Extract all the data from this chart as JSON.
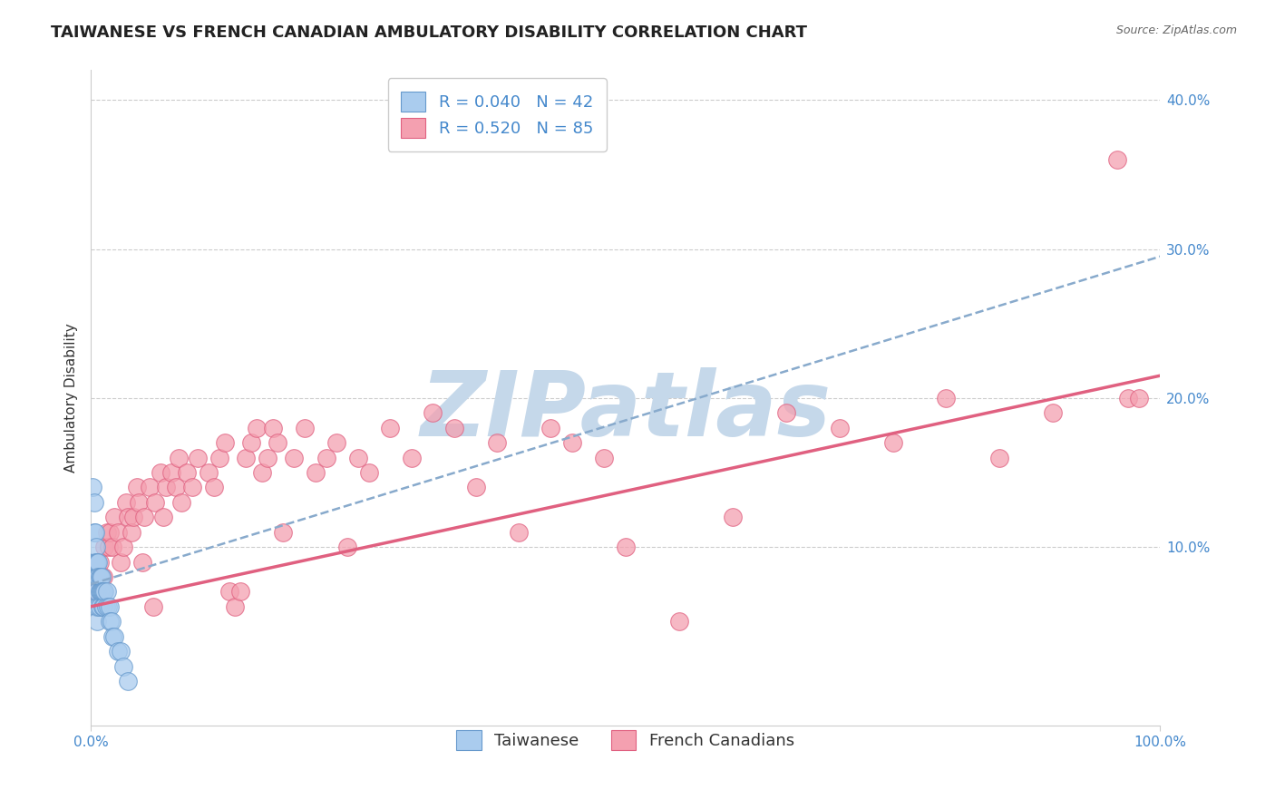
{
  "title": "TAIWANESE VS FRENCH CANADIAN AMBULATORY DISABILITY CORRELATION CHART",
  "source": "Source: ZipAtlas.com",
  "xlabel": "",
  "ylabel": "Ambulatory Disability",
  "watermark": "ZIPatlas",
  "xlim": [
    0.0,
    1.0
  ],
  "ylim": [
    -0.02,
    0.42
  ],
  "x_ticks": [
    0.0,
    1.0
  ],
  "x_tick_labels": [
    "0.0%",
    "100.0%"
  ],
  "y_ticks": [
    0.1,
    0.2,
    0.3,
    0.4
  ],
  "y_tick_labels": [
    "10.0%",
    "20.0%",
    "30.0%",
    "40.0%"
  ],
  "series": [
    {
      "name": "Taiwanese",
      "R": 0.04,
      "N": 42,
      "color": "#aaccee",
      "edge_color": "#6699cc",
      "line_color": "#88aadd",
      "line_style": "--",
      "x": [
        0.002,
        0.003,
        0.003,
        0.003,
        0.004,
        0.004,
        0.004,
        0.005,
        0.005,
        0.005,
        0.005,
        0.006,
        0.006,
        0.006,
        0.006,
        0.007,
        0.007,
        0.007,
        0.008,
        0.008,
        0.008,
        0.009,
        0.009,
        0.01,
        0.01,
        0.011,
        0.011,
        0.012,
        0.012,
        0.013,
        0.014,
        0.015,
        0.016,
        0.018,
        0.018,
        0.019,
        0.02,
        0.022,
        0.025,
        0.028,
        0.03,
        0.035
      ],
      "y": [
        0.14,
        0.13,
        0.11,
        0.09,
        0.11,
        0.09,
        0.07,
        0.1,
        0.09,
        0.08,
        0.06,
        0.09,
        0.08,
        0.07,
        0.05,
        0.09,
        0.08,
        0.06,
        0.08,
        0.07,
        0.06,
        0.08,
        0.07,
        0.08,
        0.07,
        0.07,
        0.06,
        0.07,
        0.06,
        0.07,
        0.06,
        0.07,
        0.06,
        0.06,
        0.05,
        0.05,
        0.04,
        0.04,
        0.03,
        0.03,
        0.02,
        0.01
      ]
    },
    {
      "name": "French Canadians",
      "R": 0.52,
      "N": 85,
      "color": "#f4a0b0",
      "edge_color": "#e06080",
      "line_color": "#e06080",
      "line_style": "-",
      "x": [
        0.002,
        0.003,
        0.004,
        0.005,
        0.006,
        0.007,
        0.008,
        0.009,
        0.01,
        0.012,
        0.013,
        0.015,
        0.017,
        0.018,
        0.02,
        0.022,
        0.025,
        0.028,
        0.03,
        0.033,
        0.035,
        0.038,
        0.04,
        0.043,
        0.045,
        0.048,
        0.05,
        0.055,
        0.058,
        0.06,
        0.065,
        0.068,
        0.07,
        0.075,
        0.08,
        0.082,
        0.085,
        0.09,
        0.095,
        0.1,
        0.11,
        0.115,
        0.12,
        0.125,
        0.13,
        0.135,
        0.14,
        0.145,
        0.15,
        0.155,
        0.16,
        0.165,
        0.17,
        0.175,
        0.18,
        0.19,
        0.2,
        0.21,
        0.22,
        0.23,
        0.24,
        0.25,
        0.26,
        0.28,
        0.3,
        0.32,
        0.34,
        0.36,
        0.38,
        0.4,
        0.43,
        0.45,
        0.48,
        0.5,
        0.55,
        0.6,
        0.65,
        0.7,
        0.75,
        0.8,
        0.85,
        0.9,
        0.96,
        0.97,
        0.98
      ],
      "y": [
        0.08,
        0.08,
        0.07,
        0.07,
        0.07,
        0.07,
        0.09,
        0.08,
        0.08,
        0.08,
        0.1,
        0.11,
        0.1,
        0.11,
        0.1,
        0.12,
        0.11,
        0.09,
        0.1,
        0.13,
        0.12,
        0.11,
        0.12,
        0.14,
        0.13,
        0.09,
        0.12,
        0.14,
        0.06,
        0.13,
        0.15,
        0.12,
        0.14,
        0.15,
        0.14,
        0.16,
        0.13,
        0.15,
        0.14,
        0.16,
        0.15,
        0.14,
        0.16,
        0.17,
        0.07,
        0.06,
        0.07,
        0.16,
        0.17,
        0.18,
        0.15,
        0.16,
        0.18,
        0.17,
        0.11,
        0.16,
        0.18,
        0.15,
        0.16,
        0.17,
        0.1,
        0.16,
        0.15,
        0.18,
        0.16,
        0.19,
        0.18,
        0.14,
        0.17,
        0.11,
        0.18,
        0.17,
        0.16,
        0.1,
        0.05,
        0.12,
        0.19,
        0.18,
        0.17,
        0.2,
        0.16,
        0.19,
        0.36,
        0.2,
        0.2
      ]
    }
  ],
  "background_color": "#ffffff",
  "grid_color": "#cccccc",
  "title_fontsize": 13,
  "axis_label_fontsize": 11,
  "tick_fontsize": 11,
  "legend_fontsize": 13,
  "watermark_color": "#c5d8ea",
  "watermark_fontsize": 72,
  "blue_line_intercept": 0.075,
  "blue_line_slope": 0.22,
  "pink_line_intercept": 0.06,
  "pink_line_slope": 0.155
}
